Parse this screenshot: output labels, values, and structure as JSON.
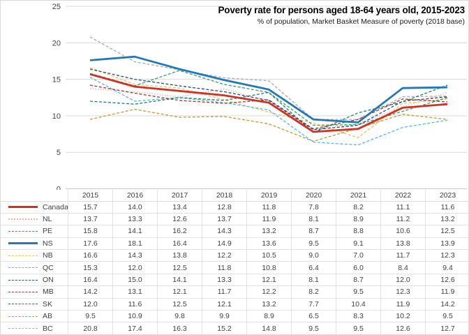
{
  "title": "Poverty rate for persons aged 18-64 years old, 2015-2023",
  "subtitle": "% of population, Market Basket Measure of poverty (2018 base)",
  "colors": {
    "gridline": "#d9d9d9",
    "zero_line": "#c6c6c6",
    "axis_text": "#404040",
    "table_line": "#e2e2e2",
    "background": "#ffffff",
    "canada_red": "#ce3126",
    "ns_blue": "#2577b6"
  },
  "chart_data": {
    "type": "line",
    "x": [
      "2015",
      "2016",
      "2017",
      "2018",
      "2019",
      "2020",
      "2021",
      "2022",
      "2023"
    ],
    "title": "Poverty rate for persons aged 18-64 years old, 2015-2023",
    "subtitle": "% of population, Market Basket Measure of poverty (2018 base)",
    "xlabel": "",
    "ylabel": "",
    "ylim": [
      0,
      25
    ],
    "yticks": [
      0,
      5,
      10,
      15,
      20,
      25
    ],
    "grid": "horizontal",
    "legend_position": "table-left-column",
    "series": [
      {
        "name": "Canada",
        "color": "#ce3126",
        "style": "solid",
        "width": 2.8,
        "values": [
          15.7,
          14.0,
          13.4,
          12.8,
          11.8,
          7.8,
          8.2,
          11.1,
          11.6
        ]
      },
      {
        "name": "NL",
        "color": "#f2b8ac",
        "style": "dotted",
        "width": 1.5,
        "values": [
          13.7,
          13.3,
          12.6,
          13.7,
          11.9,
          8.1,
          8.9,
          11.2,
          13.2
        ]
      },
      {
        "name": "PE",
        "color": "#2e9e68",
        "style": "dashed",
        "width": 1.3,
        "values": [
          15.8,
          14.1,
          16.2,
          14.3,
          13.2,
          8.7,
          8.8,
          10.6,
          12.5
        ]
      },
      {
        "name": "NS",
        "color": "#2577b6",
        "style": "solid",
        "width": 2.8,
        "values": [
          17.6,
          18.1,
          16.4,
          14.9,
          13.6,
          9.5,
          9.1,
          13.8,
          13.9
        ]
      },
      {
        "name": "NB",
        "color": "#e9c35e",
        "style": "dashed",
        "width": 1.3,
        "values": [
          16.6,
          14.3,
          13.8,
          12.2,
          10.5,
          9.0,
          7.0,
          11.7,
          12.3
        ]
      },
      {
        "name": "QC",
        "color": "#54b7e2",
        "style": "dashed",
        "width": 1.3,
        "values": [
          15.3,
          12.0,
          12.5,
          11.8,
          10.8,
          6.4,
          6.0,
          8.4,
          9.4
        ]
      },
      {
        "name": "ON",
        "color": "#1f4e79",
        "style": "dashed",
        "width": 1.3,
        "values": [
          16.4,
          15.0,
          14.1,
          13.3,
          12.1,
          8.1,
          8.7,
          12.0,
          12.6
        ]
      },
      {
        "name": "MB",
        "color": "#a2352c",
        "style": "dashed",
        "width": 1.3,
        "values": [
          14.2,
          13.1,
          12.1,
          11.7,
          12.2,
          8.2,
          9.5,
          12.3,
          11.9
        ]
      },
      {
        "name": "SK",
        "color": "#1c7d72",
        "style": "dashed",
        "width": 1.3,
        "values": [
          12.0,
          11.6,
          12.5,
          12.1,
          13.2,
          7.7,
          10.4,
          11.9,
          14.2
        ]
      },
      {
        "name": "AB",
        "color": "#c1992f",
        "style": "dashed",
        "width": 1.3,
        "values": [
          9.5,
          10.9,
          9.8,
          9.9,
          8.9,
          6.5,
          8.3,
          10.2,
          9.5
        ]
      },
      {
        "name": "BC",
        "color": "#ababab",
        "style": "dashed",
        "width": 1.3,
        "values": [
          20.8,
          17.4,
          16.3,
          15.2,
          14.8,
          9.5,
          9.5,
          12.6,
          12.7
        ]
      }
    ]
  }
}
